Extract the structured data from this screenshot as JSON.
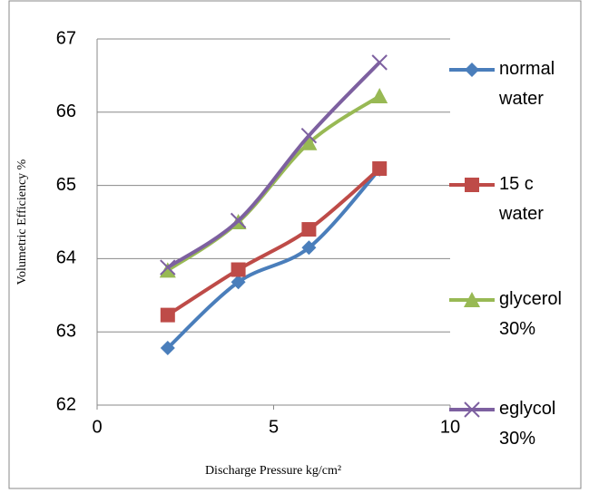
{
  "chart_data": {
    "type": "line",
    "x_label": "Discharge Pressure kg/cm²",
    "y_label": "Volumetric Efficiency %",
    "x": [
      2,
      4,
      6,
      8
    ],
    "xlim": [
      0,
      10
    ],
    "xticks": [
      0,
      5,
      10
    ],
    "ylim": [
      62,
      67
    ],
    "yticks": [
      62,
      63,
      64,
      65,
      66,
      67
    ],
    "grid": true,
    "legend": "right",
    "smooth": true,
    "series": [
      {
        "name": "normal water",
        "color": "#4a7ebb",
        "marker": "diamond",
        "values": [
          62.78,
          63.68,
          64.15,
          65.22
        ]
      },
      {
        "name": "15 c water",
        "color": "#be4b48",
        "marker": "square",
        "values": [
          63.23,
          63.85,
          64.4,
          65.23
        ]
      },
      {
        "name": "glycerol 30%",
        "color": "#98b954",
        "marker": "triangle",
        "values": [
          63.84,
          64.5,
          65.58,
          66.22
        ]
      },
      {
        "name": "eglycol 30%",
        "color": "#7d60a0",
        "marker": "x",
        "values": [
          63.88,
          64.52,
          65.68,
          66.68
        ]
      }
    ]
  }
}
